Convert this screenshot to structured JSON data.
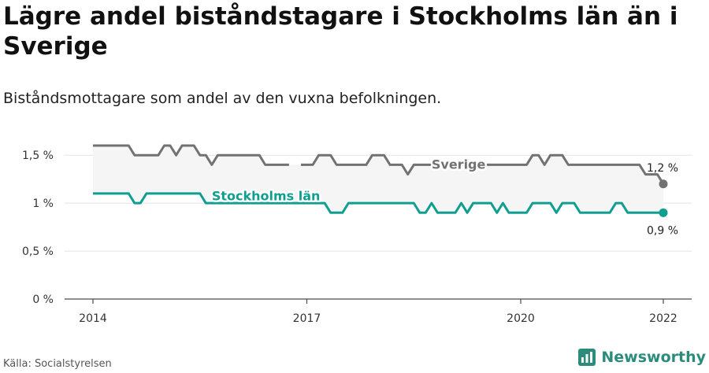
{
  "header": {
    "title": "Lägre andel biståndstagare i Stockholms län än i Sverige",
    "subtitle": "Biståndsmottagare som andel av den vuxna befolkningen."
  },
  "footer": {
    "source": "Källa: Socialstyrelsen",
    "brand": "Newsworthy"
  },
  "colors": {
    "sverige": "#727272",
    "stockholm": "#0f9e90",
    "band": "#f5f5f5",
    "grid": "#e3e3e3",
    "brand": "#2c8c7c"
  },
  "chart_data": {
    "type": "line",
    "title": "Lägre andel biståndstagare i Stockholms län än i Sverige",
    "subtitle": "Biståndsmottagare som andel av den vuxna befolkningen.",
    "xlabel": "",
    "ylabel": "",
    "xlim": [
      "2014-01",
      "2022-01"
    ],
    "ylim": [
      0,
      1.6
    ],
    "y_ticks": [
      0,
      0.5,
      1,
      1.5
    ],
    "y_tick_labels": [
      "0 %",
      "0,5 %",
      "1 %",
      "1,5 %"
    ],
    "x_ticks": [
      "2014",
      "2017",
      "2020",
      "2022"
    ],
    "grid": true,
    "legend": "inline labels",
    "series": [
      {
        "name": "Sverige",
        "x": [
          "2014-01",
          "2014-02",
          "2014-03",
          "2014-04",
          "2014-05",
          "2014-06",
          "2014-07",
          "2014-08",
          "2014-09",
          "2014-10",
          "2014-11",
          "2014-12",
          "2015-01",
          "2015-02",
          "2015-03",
          "2015-04",
          "2015-05",
          "2015-06",
          "2015-07",
          "2015-08",
          "2015-09",
          "2015-10",
          "2015-11",
          "2015-12",
          "2016-01",
          "2016-02",
          "2016-03",
          "2016-04",
          "2016-05",
          "2016-06",
          "2016-07",
          "2016-08",
          "2016-09",
          "2016-10",
          "2016-11",
          "2016-12",
          "2017-01",
          "2017-02",
          "2017-03",
          "2017-04",
          "2017-05",
          "2017-06",
          "2017-07",
          "2017-08",
          "2017-09",
          "2017-10",
          "2017-11",
          "2017-12",
          "2018-01",
          "2018-02",
          "2018-03",
          "2018-04",
          "2018-05",
          "2018-06",
          "2018-07",
          "2018-08",
          "2018-09",
          "2018-10",
          "2018-11",
          "2018-12",
          "2019-01",
          "2019-02",
          "2019-03",
          "2019-04",
          "2019-05",
          "2019-06",
          "2019-07",
          "2019-08",
          "2019-09",
          "2019-10",
          "2019-11",
          "2019-12",
          "2020-01",
          "2020-02",
          "2020-03",
          "2020-04",
          "2020-05",
          "2020-06",
          "2020-07",
          "2020-08",
          "2020-09",
          "2020-10",
          "2020-11",
          "2020-12",
          "2021-01",
          "2021-02",
          "2021-03",
          "2021-04",
          "2021-05",
          "2021-06",
          "2021-07",
          "2021-08",
          "2021-09",
          "2021-10",
          "2021-11",
          "2021-12",
          "2022-01"
        ],
        "values": [
          1.6,
          1.6,
          1.6,
          1.6,
          1.6,
          1.6,
          1.6,
          1.5,
          1.5,
          1.5,
          1.5,
          1.5,
          1.6,
          1.6,
          1.5,
          1.6,
          1.6,
          1.6,
          1.5,
          1.5,
          1.4,
          1.5,
          1.5,
          1.5,
          1.5,
          1.5,
          1.5,
          1.5,
          1.5,
          1.4,
          1.4,
          1.4,
          1.4,
          1.4,
          null,
          1.4,
          1.4,
          1.4,
          1.5,
          1.5,
          1.5,
          1.4,
          1.4,
          1.4,
          1.4,
          1.4,
          1.4,
          1.5,
          1.5,
          1.5,
          1.4,
          1.4,
          1.4,
          1.3,
          1.4,
          1.4,
          1.4,
          1.4,
          1.4,
          1.4,
          1.4,
          1.4,
          1.4,
          1.4,
          1.4,
          1.4,
          1.4,
          1.4,
          1.4,
          1.4,
          1.4,
          1.4,
          1.4,
          1.4,
          1.5,
          1.5,
          1.4,
          1.5,
          1.5,
          1.5,
          1.4,
          1.4,
          1.4,
          1.4,
          1.4,
          1.4,
          1.4,
          1.4,
          1.4,
          1.4,
          1.4,
          1.4,
          1.4,
          1.3,
          1.3,
          1.3,
          1.2
        ],
        "end_label": "1,2 %"
      },
      {
        "name": "Stockholms län",
        "x": [
          "2014-01",
          "2014-02",
          "2014-03",
          "2014-04",
          "2014-05",
          "2014-06",
          "2014-07",
          "2014-08",
          "2014-09",
          "2014-10",
          "2014-11",
          "2014-12",
          "2015-01",
          "2015-02",
          "2015-03",
          "2015-04",
          "2015-05",
          "2015-06",
          "2015-07",
          "2015-08",
          "2015-09",
          "2015-10",
          "2015-11",
          "2015-12",
          "2016-01",
          "2016-02",
          "2016-03",
          "2016-04",
          "2016-05",
          "2016-06",
          "2016-07",
          "2016-08",
          "2016-09",
          "2016-10",
          "2016-11",
          "2016-12",
          "2017-01",
          "2017-02",
          "2017-03",
          "2017-04",
          "2017-05",
          "2017-06",
          "2017-07",
          "2017-08",
          "2017-09",
          "2017-10",
          "2017-11",
          "2017-12",
          "2018-01",
          "2018-02",
          "2018-03",
          "2018-04",
          "2018-05",
          "2018-06",
          "2018-07",
          "2018-08",
          "2018-09",
          "2018-10",
          "2018-11",
          "2018-12",
          "2019-01",
          "2019-02",
          "2019-03",
          "2019-04",
          "2019-05",
          "2019-06",
          "2019-07",
          "2019-08",
          "2019-09",
          "2019-10",
          "2019-11",
          "2019-12",
          "2020-01",
          "2020-02",
          "2020-03",
          "2020-04",
          "2020-05",
          "2020-06",
          "2020-07",
          "2020-08",
          "2020-09",
          "2020-10",
          "2020-11",
          "2020-12",
          "2021-01",
          "2021-02",
          "2021-03",
          "2021-04",
          "2021-05",
          "2021-06",
          "2021-07",
          "2021-08",
          "2021-09",
          "2021-10",
          "2021-11",
          "2021-12",
          "2022-01"
        ],
        "values": [
          1.1,
          1.1,
          1.1,
          1.1,
          1.1,
          1.1,
          1.1,
          1.0,
          1.0,
          1.1,
          1.1,
          1.1,
          1.1,
          1.1,
          1.1,
          1.1,
          1.1,
          1.1,
          1.1,
          1.0,
          1.0,
          1.0,
          1.0,
          1.0,
          1.0,
          1.0,
          1.0,
          1.0,
          1.0,
          1.0,
          1.0,
          1.0,
          1.0,
          1.0,
          1.0,
          1.0,
          1.0,
          1.0,
          1.0,
          1.0,
          0.9,
          0.9,
          0.9,
          1.0,
          1.0,
          1.0,
          1.0,
          1.0,
          1.0,
          1.0,
          1.0,
          1.0,
          1.0,
          1.0,
          1.0,
          0.9,
          0.9,
          1.0,
          0.9,
          0.9,
          0.9,
          0.9,
          1.0,
          0.9,
          1.0,
          1.0,
          1.0,
          1.0,
          0.9,
          1.0,
          0.9,
          0.9,
          0.9,
          0.9,
          1.0,
          1.0,
          1.0,
          1.0,
          0.9,
          1.0,
          1.0,
          1.0,
          0.9,
          0.9,
          0.9,
          0.9,
          0.9,
          0.9,
          1.0,
          1.0,
          0.9,
          0.9,
          0.9,
          0.9,
          0.9,
          0.9,
          0.9
        ],
        "end_label": "0,9 %"
      }
    ]
  }
}
